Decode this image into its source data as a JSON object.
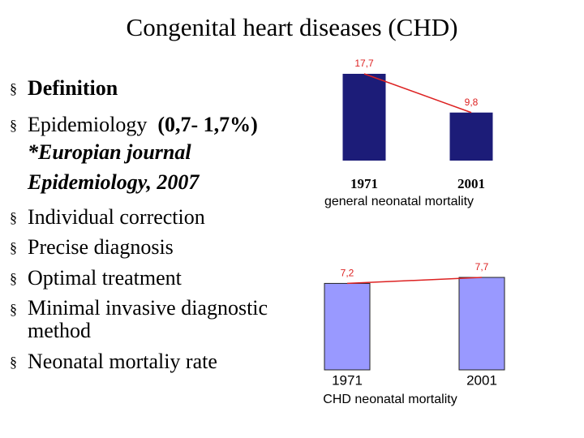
{
  "title": "Congenital heart diseases (CHD)",
  "bullets": [
    {
      "text": "Definition"
    },
    {
      "text": "Epidemiology",
      "detail": "(0,7- 1,7%)",
      "note": "*Europian journal Epidemiology, 2007"
    },
    {
      "text": "Individual correction"
    },
    {
      "text": "Precise diagnosis"
    },
    {
      "text": "Optimal treatment"
    },
    {
      "text": "Minimal invasive diagnostic method"
    },
    {
      "text": "Neonatal mortaliy rate"
    }
  ],
  "chart_data": [
    {
      "type": "bar",
      "x_label": "general neonatal mortality",
      "categories": [
        "1971",
        "2001"
      ],
      "values": [
        17.7,
        9.8
      ],
      "value_labels": [
        "17,7",
        "9,8"
      ],
      "color": "#1c1c78",
      "line_color": "#dd2222"
    },
    {
      "type": "bar",
      "x_label": "CHD neonatal mortality",
      "categories": [
        "1971",
        "2001"
      ],
      "values": [
        7.2,
        7.7
      ],
      "value_labels": [
        "7,2",
        "7,7"
      ],
      "color": "#9999ff",
      "line_color": "#dd2222"
    }
  ]
}
